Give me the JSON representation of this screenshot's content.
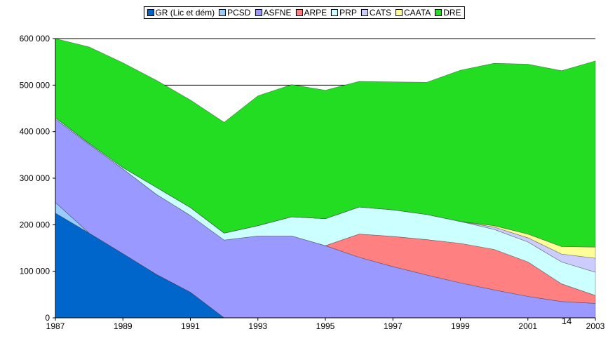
{
  "chart_data": {
    "type": "stacked-area",
    "x": [
      1987,
      1988,
      1989,
      1990,
      1991,
      1992,
      1993,
      1994,
      1995,
      1996,
      1997,
      1998,
      1999,
      2000,
      2001,
      2002,
      2003
    ],
    "xlim": [
      1987,
      2003
    ],
    "xticks": [
      1987,
      1989,
      1991,
      1993,
      1995,
      1997,
      1999,
      2001,
      2003
    ],
    "ylim": [
      0,
      600000
    ],
    "yticks": [
      0,
      {
        "value": 100000,
        "label": "100 000"
      },
      {
        "value": 200000,
        "label": "200 000"
      },
      {
        "value": 300000,
        "label": "300 000"
      },
      {
        "value": 400000,
        "label": "400 000"
      },
      {
        "value": 500000,
        "label": "500 000"
      },
      {
        "value": 600000,
        "label": "600 000"
      }
    ],
    "grid": true,
    "legend": "top",
    "annotation": "14",
    "series": [
      {
        "name": "GR (Lic et dém)",
        "color": "#0066cc",
        "values": [
          225000,
          182000,
          138000,
          93000,
          55000,
          0,
          0,
          0,
          0,
          0,
          0,
          0,
          0,
          0,
          0,
          0,
          0
        ]
      },
      {
        "name": "PCSD",
        "color": "#99ccff",
        "values": [
          23000,
          0,
          0,
          0,
          0,
          0,
          0,
          0,
          0,
          0,
          0,
          0,
          0,
          0,
          0,
          0,
          0
        ]
      },
      {
        "name": "ASFNE",
        "color": "#9999ff",
        "values": [
          179000,
          191000,
          182000,
          172000,
          165000,
          167000,
          176000,
          176000,
          155000,
          130000,
          110000,
          92000,
          75000,
          60000,
          46000,
          35000,
          31000
        ]
      },
      {
        "name": "ARPE",
        "color": "#ff8080",
        "values": [
          0,
          0,
          0,
          0,
          0,
          0,
          0,
          0,
          0,
          50000,
          65000,
          76000,
          85000,
          87000,
          74000,
          38000,
          17000
        ]
      },
      {
        "name": "PRP",
        "color": "#ccffff",
        "values": [
          3000,
          2000,
          3000,
          15000,
          17000,
          15000,
          22000,
          41000,
          58000,
          58000,
          57000,
          54000,
          47000,
          43000,
          43000,
          47000,
          50000
        ]
      },
      {
        "name": "CATS",
        "color": "#ccccff",
        "values": [
          0,
          0,
          0,
          0,
          0,
          0,
          0,
          0,
          0,
          0,
          0,
          0,
          0,
          5000,
          9000,
          17000,
          30000
        ]
      },
      {
        "name": "CAATA",
        "color": "#ffff99",
        "values": [
          0,
          0,
          0,
          0,
          0,
          0,
          0,
          0,
          0,
          0,
          0,
          0,
          0,
          3000,
          8000,
          16000,
          24000
        ]
      },
      {
        "name": "DRE",
        "color": "#22dd22",
        "values": [
          170000,
          207000,
          225000,
          230000,
          231000,
          238000,
          279000,
          284000,
          276000,
          270000,
          275000,
          284000,
          325000,
          349000,
          365000,
          378000,
          400000
        ]
      }
    ]
  }
}
